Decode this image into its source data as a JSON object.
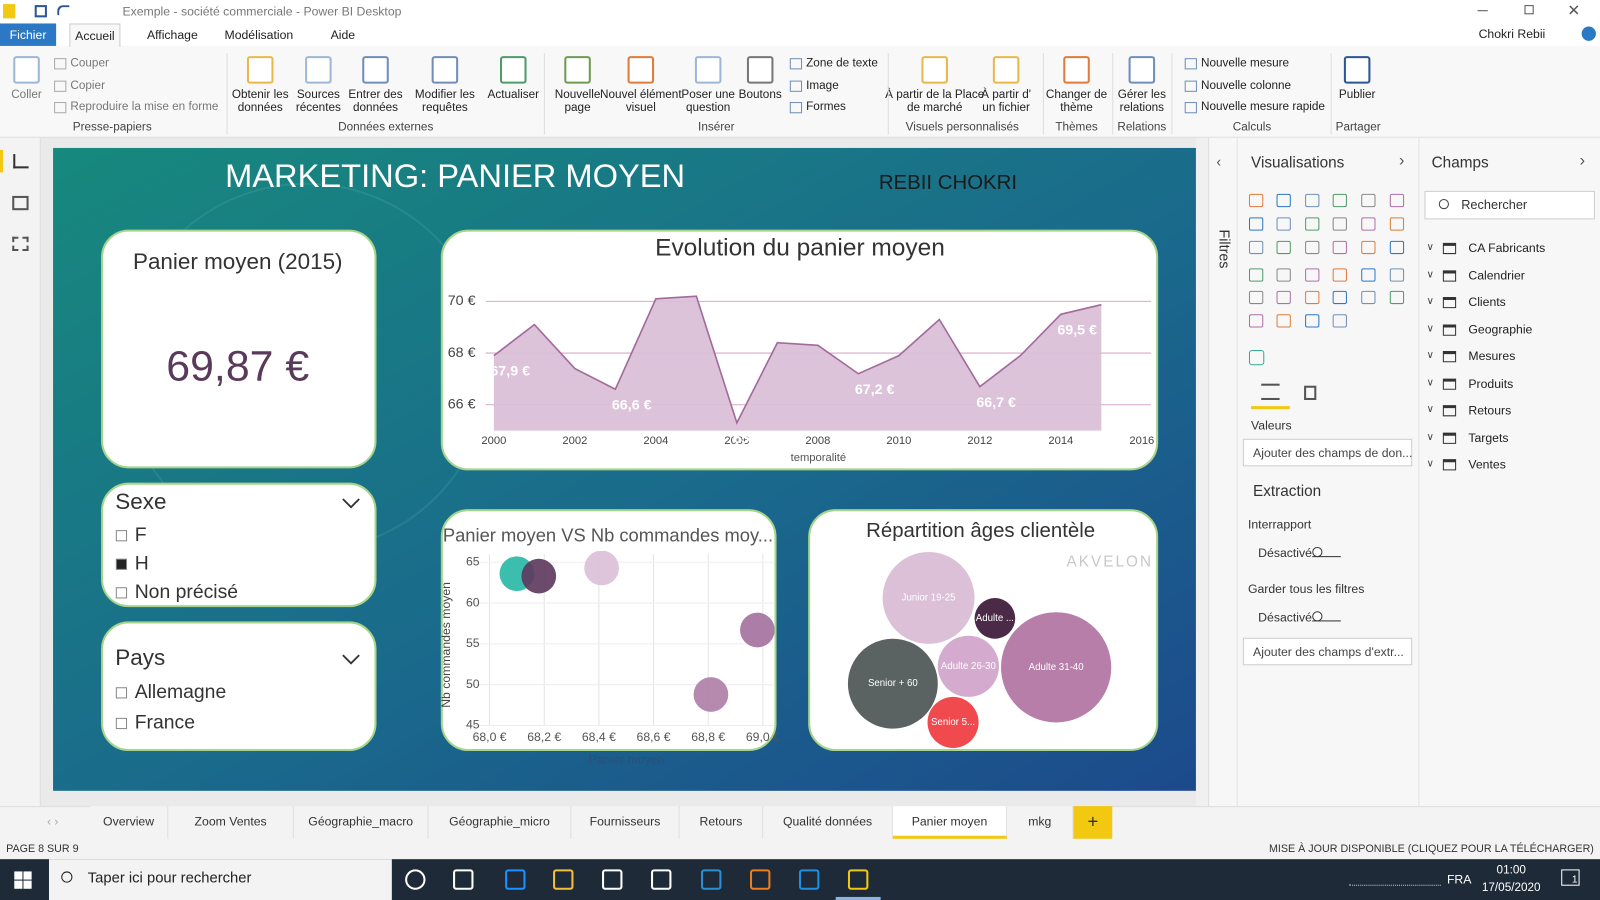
{
  "window": {
    "title": "Exemple - société commerciale - Power BI Desktop",
    "user": "Chokri Rebii"
  },
  "menu": [
    "Fichier",
    "Accueil",
    "Affichage",
    "Modélisation",
    "Aide"
  ],
  "ribbon": {
    "buttons": [
      "Coller",
      "Obtenir les données",
      "Sources récentes",
      "Entrer des données",
      "Modifier les requêtes",
      "Actualiser",
      "Nouvelle page",
      "Nouvel élément visuel",
      "Poser une question",
      "Boutons",
      "À partir de la Place de marché",
      "À partir d' un fichier",
      "Changer de thème",
      "Gérer les relations",
      "Publier"
    ],
    "small": [
      "Couper",
      "Copier",
      "Reproduire la mise en forme",
      "Zone de texte",
      "Image",
      "Formes",
      "Nouvelle mesure",
      "Nouvelle colonne",
      "Nouvelle mesure rapide"
    ],
    "groups": [
      "Presse-papiers",
      "Données externes",
      "Insérer",
      "Visuels personnalisés",
      "Thèmes",
      "Relations",
      "Calculs",
      "Partager"
    ]
  },
  "report": {
    "title": "MARKETING: PANIER MOYEN",
    "author": "REBII CHOKRI",
    "watermark": "AKVELON",
    "card": {
      "title": "Panier moyen (2015)",
      "value": "69,87 €"
    },
    "slicers": [
      {
        "title": "Sexe",
        "options": [
          "F",
          "H",
          "Non précisé"
        ],
        "selected": "H"
      },
      {
        "title": "Pays",
        "options": [
          "Allemagne",
          "France"
        ],
        "selected": null
      }
    ]
  },
  "chart_data": [
    {
      "type": "area",
      "title": "Evolution du panier moyen",
      "x_label": "temporalité",
      "x": [
        2000,
        2001,
        2002,
        2003,
        2004,
        2005,
        2006,
        2007,
        2008,
        2009,
        2010,
        2011,
        2012,
        2013,
        2014,
        2015
      ],
      "values": [
        67.9,
        69.1,
        67.4,
        66.6,
        70.1,
        70.2,
        65.3,
        68.4,
        68.3,
        67.2,
        67.9,
        69.3,
        66.7,
        67.9,
        69.5,
        69.87
      ],
      "value_labels": [
        "67,9 €",
        null,
        null,
        "66,6 €",
        null,
        null,
        "65,3 €",
        null,
        null,
        "67,2 €",
        null,
        null,
        "66,7 €",
        null,
        "69,5 €",
        null
      ],
      "color": "#a26b9b",
      "fill": "#d9bdd6",
      "xlim": [
        2000,
        2016
      ],
      "xticks": [
        2000,
        2002,
        2004,
        2006,
        2008,
        2010,
        2012,
        2014,
        2016
      ],
      "ylim": [
        65,
        71
      ],
      "yticks": [
        {
          "value": 66,
          "label": "66 €"
        },
        {
          "value": 68,
          "label": "68 €"
        },
        {
          "value": 70,
          "label": "70 €"
        }
      ],
      "grid": true
    },
    {
      "type": "scatter",
      "title": "Panier moyen VS Nb commandes moy...",
      "x_label": "Panier moyen",
      "y_label": "Nb commandes moyen",
      "x": [
        68.1,
        68.18,
        68.41,
        68.98,
        68.81
      ],
      "values": [
        63.6,
        63.3,
        64.3,
        56.7,
        48.8
      ],
      "colors": [
        "#2bb8a8",
        "#5e3b5f",
        "#dcc0d8",
        "#a5739f",
        "#b07fa8"
      ],
      "xlim": [
        67.9,
        69.05
      ],
      "xticks": [
        {
          "value": 68.0,
          "label": "68,0 €"
        },
        {
          "value": 68.2,
          "label": "68,2 €"
        },
        {
          "value": 68.4,
          "label": "68,4 €"
        },
        {
          "value": 68.6,
          "label": "68,6 €"
        },
        {
          "value": 68.8,
          "label": "68,8 €"
        },
        {
          "value": 69.0,
          "label": "69,0 €"
        }
      ],
      "ylim": [
        45,
        66
      ],
      "yticks": [
        45,
        50,
        55,
        60,
        65
      ],
      "grid": true
    },
    {
      "type": "bubble",
      "title": "Répartition âges clientèle",
      "categories": [
        "Junior 19-25",
        "Adulte ...",
        "Adulte 26-30",
        "Adulte 31-40",
        "Senior + 60",
        "Senior 5..."
      ],
      "values": [
        23,
        4.5,
        10.2,
        33.1,
        22,
        7.1
      ],
      "colors": [
        "#dcc0d8",
        "#4b2a48",
        "#d4abce",
        "#b67ea9",
        "#5b6262",
        "#f04a4e"
      ]
    }
  ],
  "panes": {
    "filters": "Filtres",
    "visualizations": {
      "title": "Visualisations",
      "values_label": "Valeurs",
      "values_placeholder": "Ajouter des champs de don...",
      "drillthrough": "Extraction",
      "cross_report": "Interrapport",
      "cross_report_state": "Désactivé",
      "keep_filters": "Garder tous les filtres",
      "keep_filters_state": "Désactivé",
      "drill_placeholder": "Ajouter des champs d'extr..."
    },
    "fields": {
      "title": "Champs",
      "search": "Rechercher",
      "tables": [
        "CA Fabricants",
        "Calendrier",
        "Clients",
        "Geographie",
        "Mesures",
        "Produits",
        "Retours",
        "Targets",
        "Ventes"
      ]
    }
  },
  "tabs": {
    "pages": [
      "Overview",
      "Zoom Ventes",
      "Géographie_macro",
      "Géographie_micro",
      "Fournisseurs",
      "Retours",
      "Qualité données",
      "Panier moyen",
      "mkg"
    ],
    "active": "Panier moyen",
    "add": "+"
  },
  "status": {
    "page": "PAGE 8 SUR 9",
    "update": "MISE À JOUR DISPONIBLE (CLIQUEZ POUR LA TÉLÉCHARGER)"
  },
  "taskbar": {
    "search": "Taper ici pour rechercher",
    "language": "FRA",
    "time": "01:00",
    "date": "17/05/2020",
    "notifications": "1"
  }
}
